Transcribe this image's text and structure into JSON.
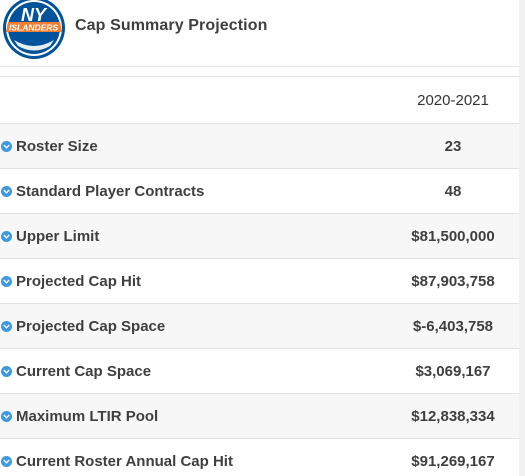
{
  "header": {
    "title": "Cap Summary Projection"
  },
  "table": {
    "columns": [
      "",
      "2020-2021"
    ],
    "rows": [
      {
        "label": "Roster Size",
        "value": "23"
      },
      {
        "label": "Standard Player Contracts",
        "value": "48"
      },
      {
        "label": "Upper Limit",
        "value": "$81,500,000"
      },
      {
        "label": "Projected Cap Hit",
        "value": "$87,903,758"
      },
      {
        "label": "Projected Cap Space",
        "value": "$-6,403,758"
      },
      {
        "label": "Current Cap Space",
        "value": "$3,069,167"
      },
      {
        "label": "Maximum LTIR Pool",
        "value": "$12,838,334"
      },
      {
        "label": "Current Roster Annual Cap Hit",
        "value": "$91,269,167"
      }
    ]
  },
  "logo": {
    "text_top": "NY",
    "text_band": "ISLANDERS",
    "colors": {
      "blue": "#00539b",
      "orange": "#f47d30"
    }
  },
  "colors": {
    "check_icon": "#3b9ae1",
    "highlight": "#fff200",
    "row_alt": "#f7f7f7"
  }
}
